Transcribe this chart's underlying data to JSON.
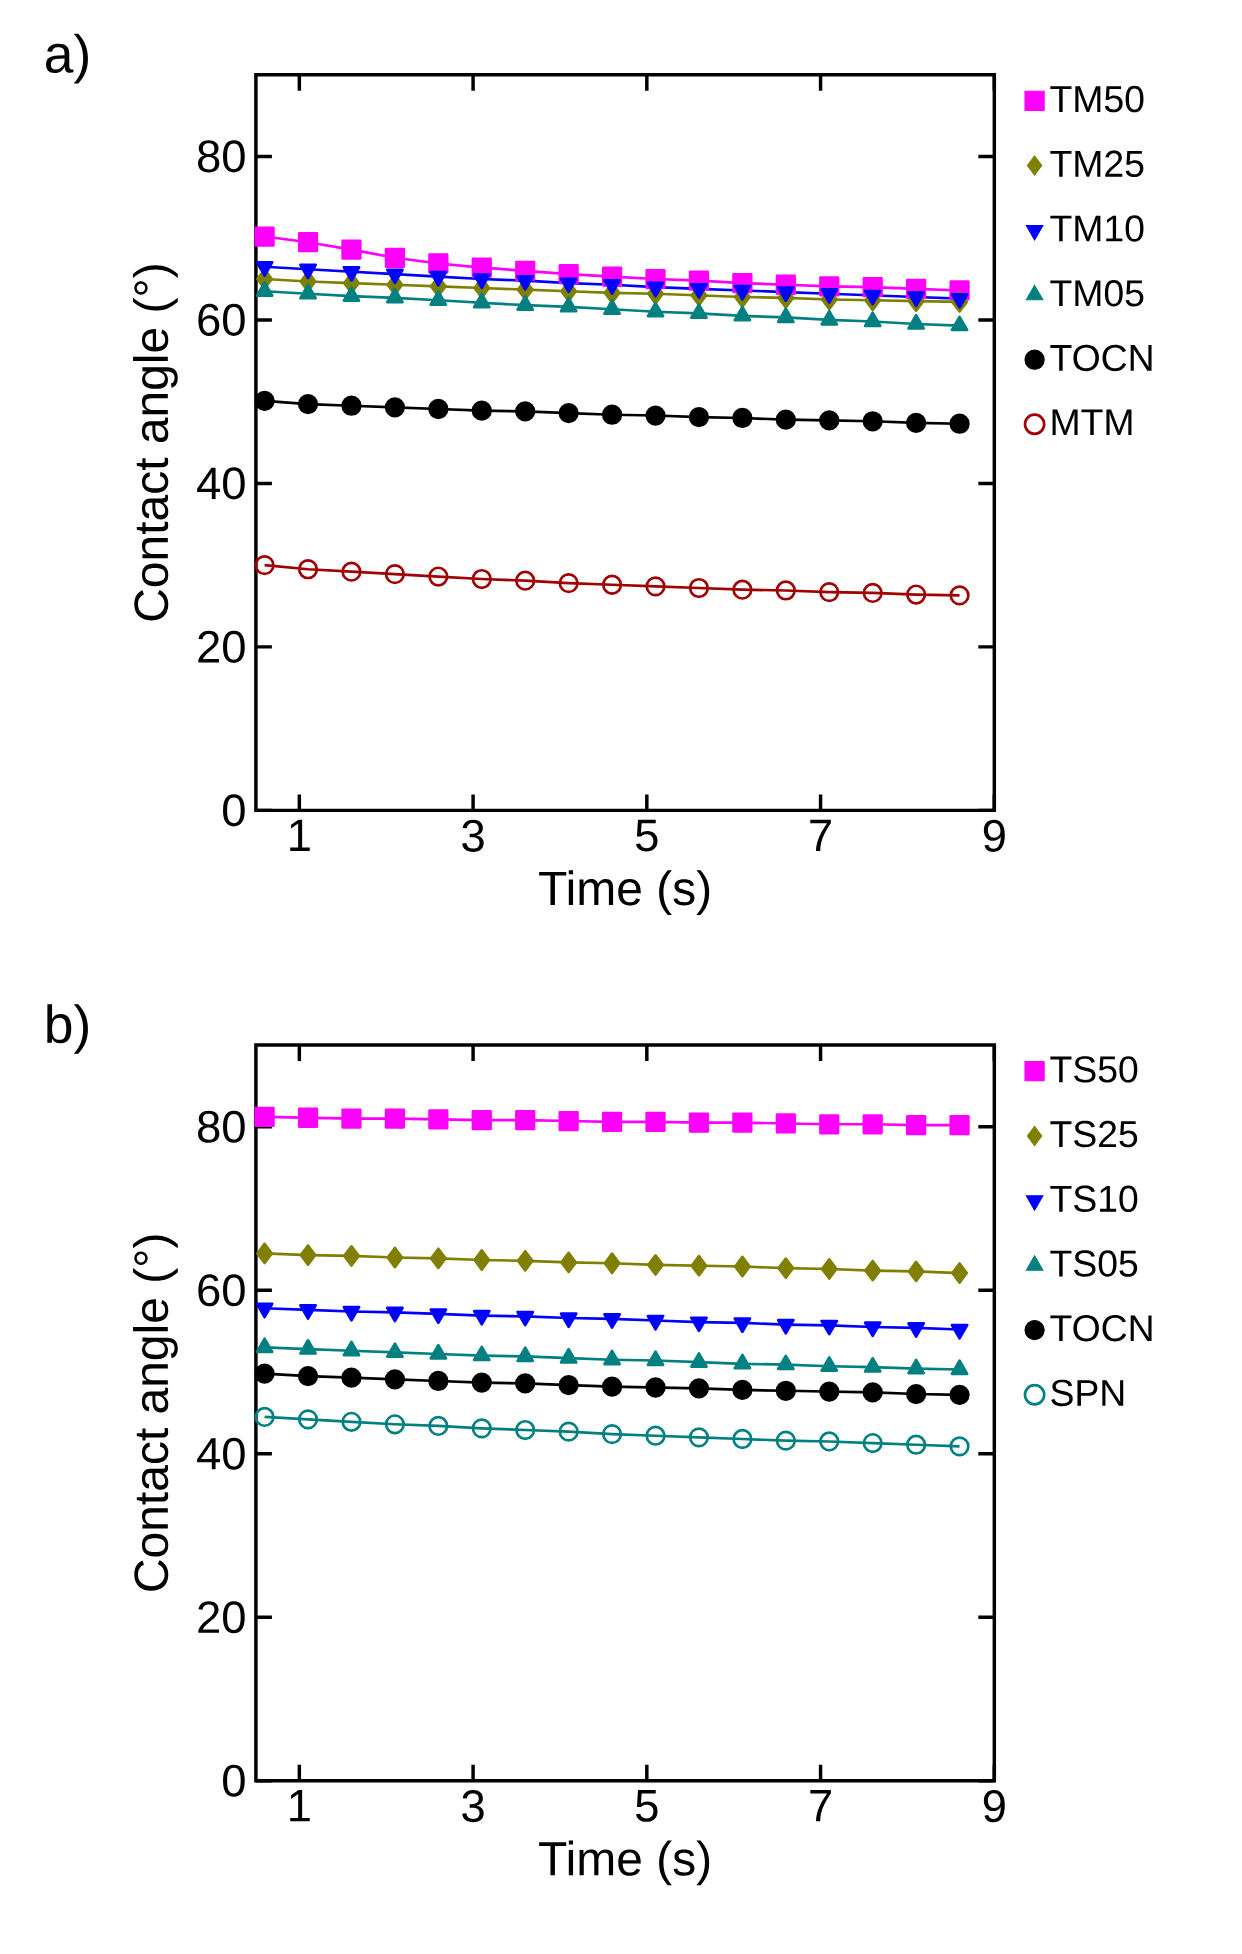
{
  "chart_data": [
    {
      "type": "line",
      "title": "a)",
      "xlabel": "Time (s)",
      "ylabel": "Contact angle (°)",
      "xlim": [
        0.5,
        9
      ],
      "xticks": [
        1,
        3,
        5,
        7,
        9
      ],
      "ylim": [
        0,
        90
      ],
      "yticks": [
        0,
        20,
        40,
        60,
        80
      ],
      "legend": "right",
      "line_style": "solid",
      "x": [
        0.6,
        1.1,
        1.6,
        2.1,
        2.6,
        3.1,
        3.6,
        4.1,
        4.6,
        5.1,
        5.6,
        6.1,
        6.6,
        7.1,
        7.6,
        8.1,
        8.6
      ],
      "series": [
        {
          "name": "TM50",
          "color": "#ff00ff",
          "marker": "square",
          "values": [
            70.2,
            69.5,
            68.6,
            67.6,
            66.9,
            66.4,
            66.0,
            65.6,
            65.3,
            65.0,
            64.8,
            64.5,
            64.3,
            64.1,
            64.0,
            63.8,
            63.6
          ]
        },
        {
          "name": "TM25",
          "color": "#808000",
          "marker": "diamond",
          "values": [
            65.0,
            64.7,
            64.5,
            64.3,
            64.1,
            63.9,
            63.7,
            63.5,
            63.3,
            63.2,
            63.0,
            62.8,
            62.7,
            62.5,
            62.4,
            62.3,
            62.2
          ]
        },
        {
          "name": "TM10",
          "color": "#0000ff",
          "marker": "triangle-down",
          "values": [
            66.5,
            66.2,
            65.9,
            65.6,
            65.3,
            65.0,
            64.8,
            64.5,
            64.3,
            64.0,
            63.8,
            63.6,
            63.4,
            63.2,
            63.0,
            62.8,
            62.6
          ]
        },
        {
          "name": "TM05",
          "color": "#008080",
          "marker": "triangle",
          "values": [
            63.5,
            63.2,
            62.9,
            62.7,
            62.4,
            62.1,
            61.8,
            61.6,
            61.3,
            61.0,
            60.8,
            60.5,
            60.3,
            60.0,
            59.8,
            59.5,
            59.3
          ]
        },
        {
          "name": "TOCN",
          "color": "#000000",
          "marker": "circle",
          "values": [
            50.1,
            49.7,
            49.5,
            49.3,
            49.1,
            48.9,
            48.8,
            48.6,
            48.4,
            48.3,
            48.1,
            48.0,
            47.8,
            47.7,
            47.6,
            47.4,
            47.3
          ]
        },
        {
          "name": "MTM",
          "color": "#a00000",
          "marker": "open-circle",
          "values": [
            30.0,
            29.5,
            29.2,
            28.9,
            28.6,
            28.3,
            28.1,
            27.8,
            27.6,
            27.4,
            27.2,
            27.0,
            26.9,
            26.7,
            26.6,
            26.4,
            26.3
          ]
        }
      ]
    },
    {
      "type": "line",
      "title": "b)",
      "xlabel": "Time (s)",
      "ylabel": "Contact angle (°)",
      "xlim": [
        0.5,
        9
      ],
      "xticks": [
        1,
        3,
        5,
        7,
        9
      ],
      "ylim": [
        0,
        90
      ],
      "yticks": [
        0,
        20,
        40,
        60,
        80
      ],
      "legend": "right",
      "line_style": "solid",
      "x": [
        0.6,
        1.1,
        1.6,
        2.1,
        2.6,
        3.1,
        3.6,
        4.1,
        4.6,
        5.1,
        5.6,
        6.1,
        6.6,
        7.1,
        7.6,
        8.1,
        8.6
      ],
      "series": [
        {
          "name": "TS50",
          "color": "#ff00ff",
          "marker": "square",
          "values": [
            81.2,
            81.1,
            81.0,
            81.0,
            80.9,
            80.8,
            80.8,
            80.7,
            80.6,
            80.6,
            80.5,
            80.5,
            80.4,
            80.3,
            80.3,
            80.2,
            80.2
          ]
        },
        {
          "name": "TS25",
          "color": "#808000",
          "marker": "diamond",
          "values": [
            64.5,
            64.3,
            64.2,
            64.0,
            63.9,
            63.7,
            63.6,
            63.4,
            63.3,
            63.1,
            63.0,
            62.9,
            62.7,
            62.6,
            62.4,
            62.3,
            62.1
          ]
        },
        {
          "name": "TS10",
          "color": "#0000ff",
          "marker": "triangle-down",
          "values": [
            57.8,
            57.6,
            57.4,
            57.3,
            57.1,
            56.9,
            56.8,
            56.6,
            56.5,
            56.3,
            56.1,
            56.0,
            55.8,
            55.7,
            55.5,
            55.4,
            55.2
          ]
        },
        {
          "name": "TS05",
          "color": "#008080",
          "marker": "triangle",
          "values": [
            53.0,
            52.8,
            52.6,
            52.4,
            52.2,
            52.0,
            51.9,
            51.7,
            51.5,
            51.4,
            51.2,
            51.0,
            50.9,
            50.7,
            50.6,
            50.4,
            50.3
          ]
        },
        {
          "name": "TOCN",
          "color": "#000000",
          "marker": "circle",
          "values": [
            49.8,
            49.5,
            49.3,
            49.1,
            48.9,
            48.7,
            48.6,
            48.4,
            48.2,
            48.1,
            48.0,
            47.8,
            47.7,
            47.6,
            47.5,
            47.3,
            47.2
          ]
        },
        {
          "name": "SPN",
          "color": "#008080",
          "marker": "open-circle",
          "values": [
            44.5,
            44.2,
            43.9,
            43.6,
            43.4,
            43.1,
            42.9,
            42.7,
            42.4,
            42.2,
            42.0,
            41.8,
            41.6,
            41.5,
            41.3,
            41.1,
            40.9
          ]
        }
      ]
    }
  ]
}
